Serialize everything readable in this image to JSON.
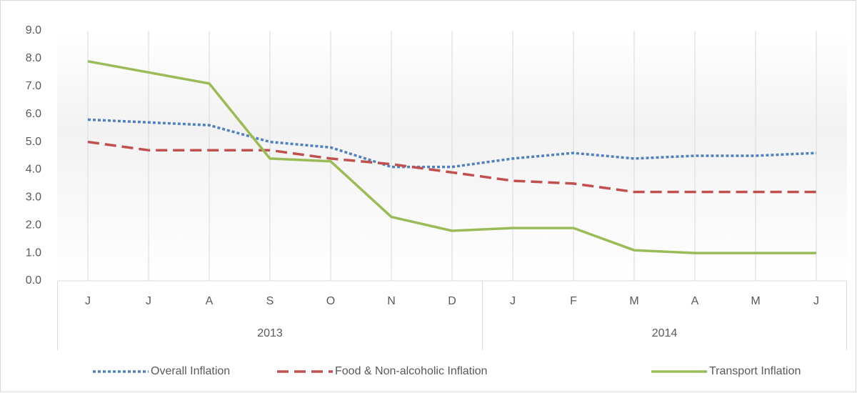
{
  "chart_data": {
    "type": "line",
    "groups": [
      {
        "label": "2013",
        "categories": [
          "J",
          "J",
          "A",
          "S",
          "O",
          "N",
          "D"
        ]
      },
      {
        "label": "2014",
        "categories": [
          "J",
          "F",
          "M",
          "A",
          "M",
          "J"
        ]
      }
    ],
    "series": [
      {
        "name": "Overall Inflation",
        "color": "#4f81bd",
        "line_style": "dot",
        "values": [
          5.8,
          5.7,
          5.6,
          5.0,
          4.8,
          4.1,
          4.1,
          4.4,
          4.6,
          4.4,
          4.5,
          4.5,
          4.6
        ]
      },
      {
        "name": "Food & Non-alcoholic Inflation",
        "color": "#c0504d",
        "line_style": "dash",
        "values": [
          5.0,
          4.7,
          4.7,
          4.7,
          4.4,
          4.2,
          3.9,
          3.6,
          3.5,
          3.2,
          3.2,
          3.2,
          3.2
        ]
      },
      {
        "name": "Transport Inflation",
        "color": "#9bbb59",
        "line_style": "solid",
        "values": [
          7.9,
          7.5,
          7.1,
          4.4,
          4.3,
          2.3,
          1.8,
          1.9,
          1.9,
          1.1,
          1.0,
          1.0,
          1.0
        ]
      }
    ],
    "ylim": [
      0,
      9
    ],
    "yticks": [
      {
        "value": 0,
        "label": "0.0"
      },
      {
        "value": 1,
        "label": "1.0"
      },
      {
        "value": 2,
        "label": "2.0"
      },
      {
        "value": 3,
        "label": "3.0"
      },
      {
        "value": 4,
        "label": "4.0"
      },
      {
        "value": 5,
        "label": "5.0"
      },
      {
        "value": 6,
        "label": "6.0"
      },
      {
        "value": 7,
        "label": "7.0"
      },
      {
        "value": 8,
        "label": "8.0"
      },
      {
        "value": 9,
        "label": "9.0"
      }
    ],
    "grid": "x",
    "legend": "bottom"
  }
}
